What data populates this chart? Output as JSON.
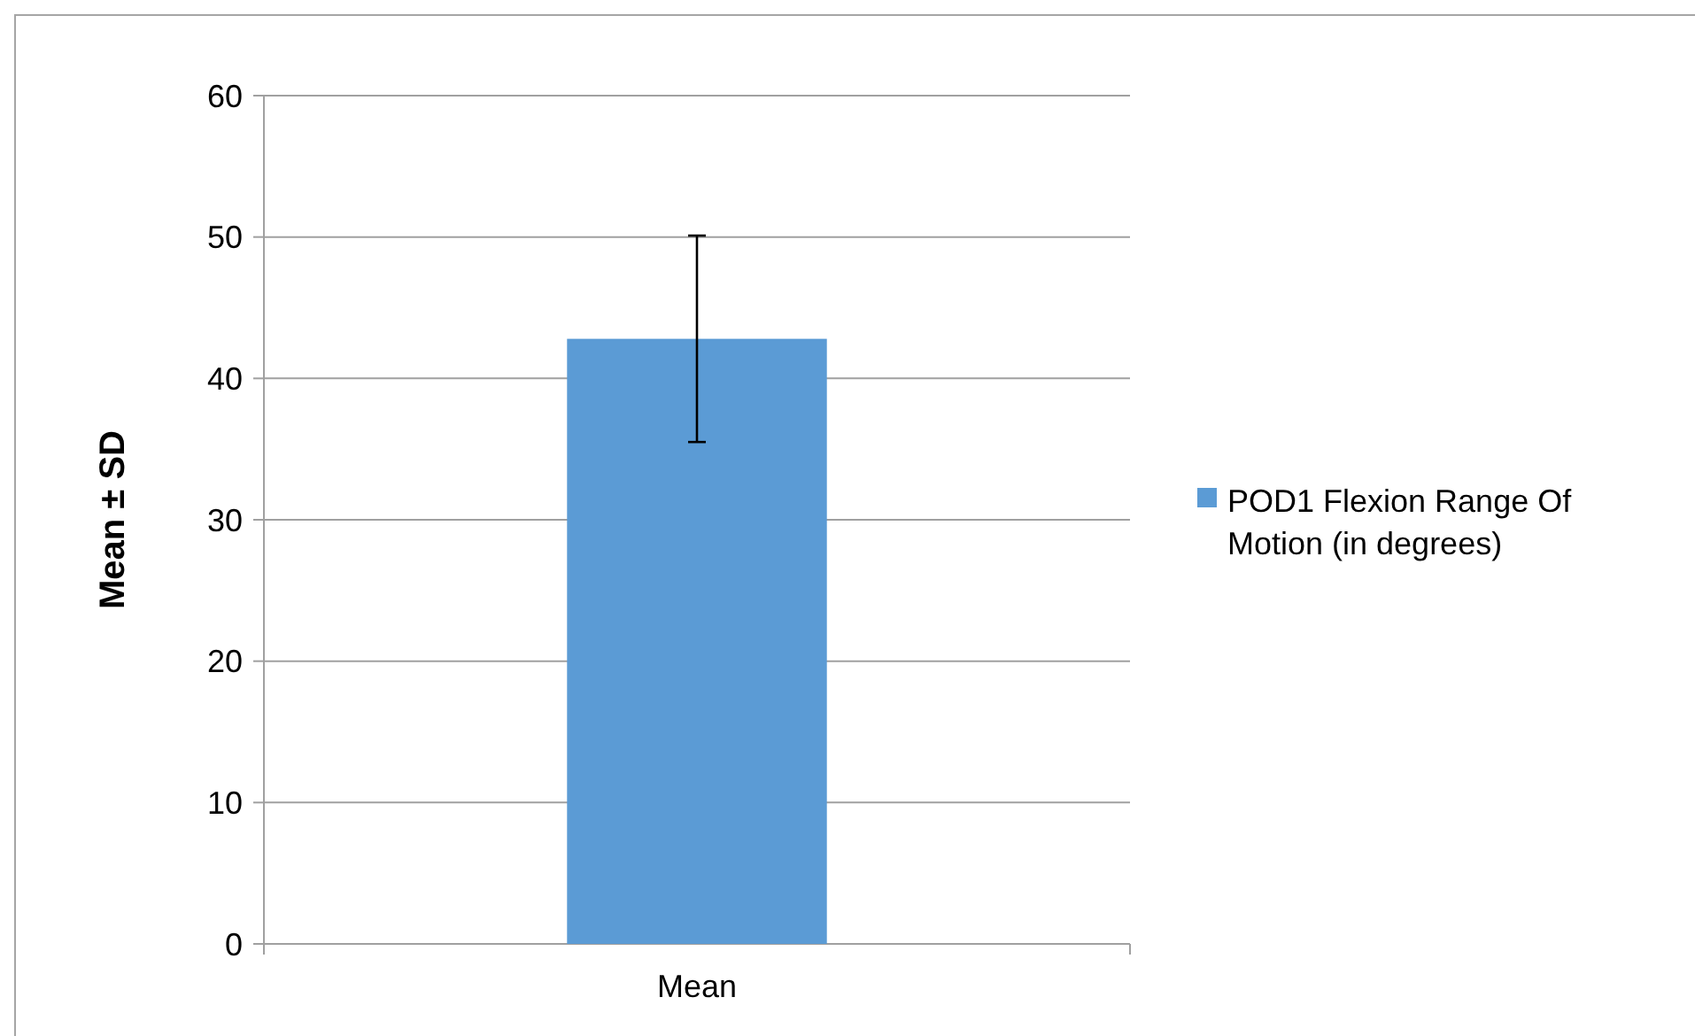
{
  "chart_data": {
    "type": "bar",
    "ylabel": "Mean ± SD",
    "categories": [
      "Mean"
    ],
    "series": [
      {
        "name": "POD1 Flexion Range Of Motion (in degrees)",
        "color": "#5b9bd5",
        "values": [
          42.8
        ],
        "errors": [
          7.3
        ]
      }
    ],
    "ylim": [
      0,
      60
    ],
    "yticks": [
      0,
      10,
      20,
      30,
      40,
      50,
      60
    ],
    "grid": "y",
    "legend": "right"
  }
}
